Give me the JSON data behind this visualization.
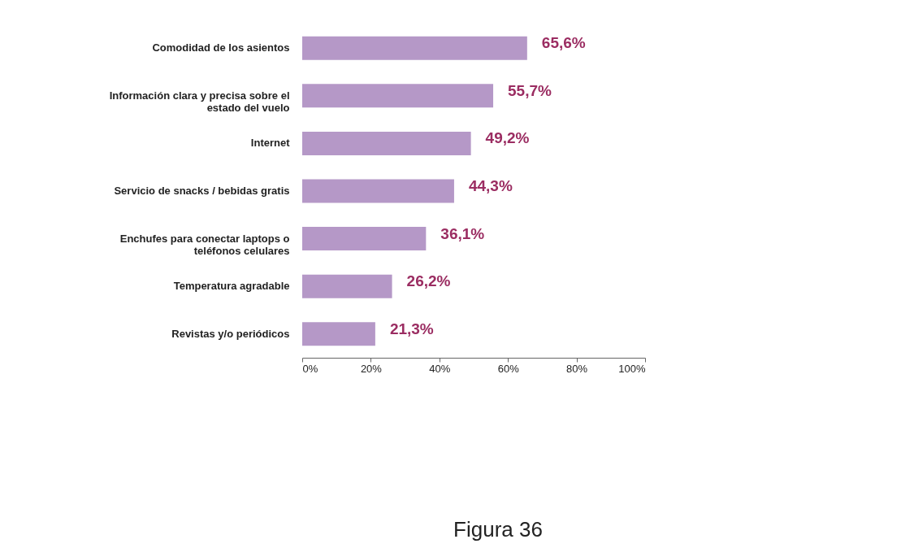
{
  "chart_data": {
    "type": "bar",
    "orientation": "horizontal",
    "categories": [
      "Comodidad de los asientos",
      "Información clara y precisa sobre el estado del vuelo",
      "Internet",
      "Servicio de snacks / bebidas gratis",
      "Enchufes para conectar laptops o teléfonos celulares",
      "Temperatura agradable",
      "Revistas y/o periódicos"
    ],
    "values": [
      65.6,
      55.7,
      49.2,
      44.3,
      36.1,
      26.2,
      21.3
    ],
    "value_labels": [
      "65,6%",
      "55,7%",
      "49,2%",
      "44,3%",
      "36,1%",
      "26,2%",
      "21,3%"
    ],
    "color": "#b598c7",
    "xlim": [
      0,
      100
    ],
    "xticks": [
      {
        "value": 0,
        "label": "0%"
      },
      {
        "value": 20,
        "label": "20%"
      },
      {
        "value": 40,
        "label": "40%"
      },
      {
        "value": 60,
        "label": "60%"
      },
      {
        "value": 80,
        "label": "80%"
      },
      {
        "value": 100,
        "label": "100%"
      }
    ],
    "grid": false,
    "annotations": [
      "Figura 36"
    ]
  }
}
